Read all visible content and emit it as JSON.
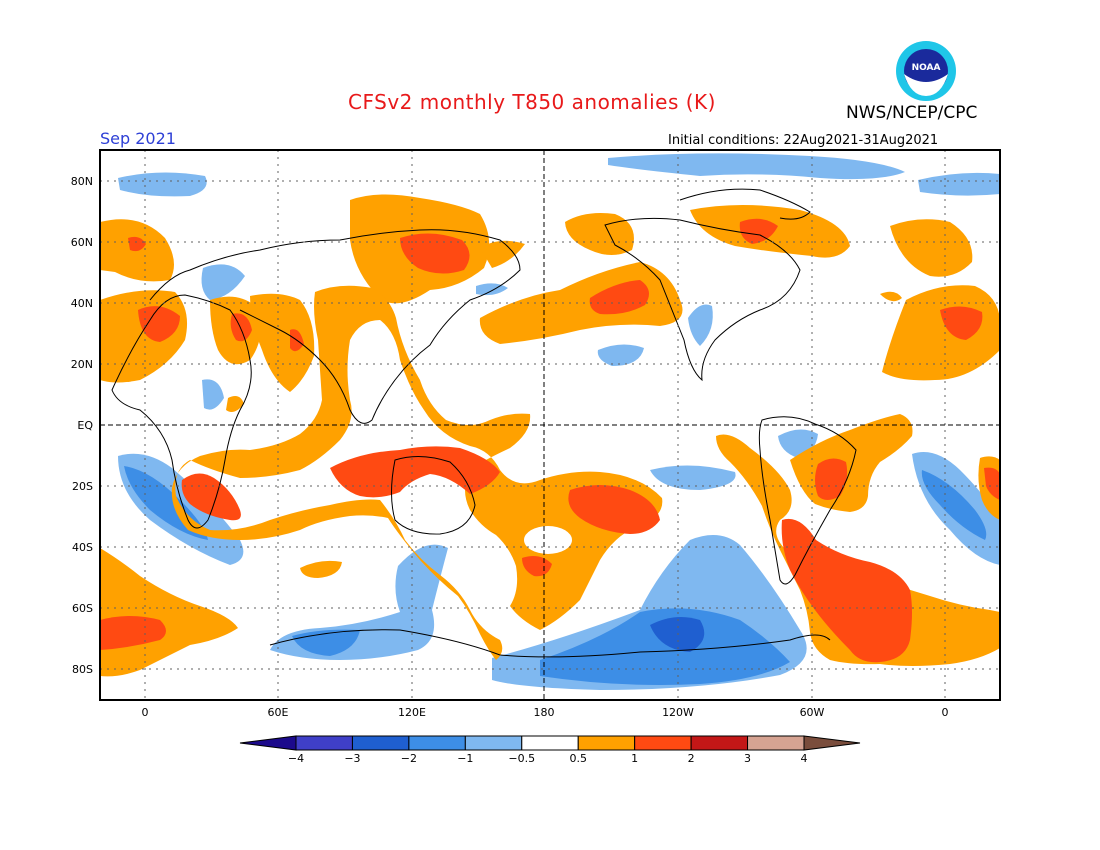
{
  "header": {
    "title": "CFSv2 monthly T850 anomalies (K)",
    "agency": "NWS/NCEP/CPC",
    "logo_text": "NOAA",
    "valid_month": "Sep 2021",
    "initial_conditions": "Initial conditions: 22Aug2021-31Aug2021"
  },
  "chart_data": {
    "type": "heatmap",
    "title": "CFSv2 monthly T850 anomalies (K)",
    "units": "K",
    "lat_ticks": [
      "80N",
      "60N",
      "40N",
      "20N",
      "EQ",
      "20S",
      "40S",
      "60S",
      "80S"
    ],
    "lon_ticks": [
      "0",
      "60E",
      "120E",
      "180",
      "120W",
      "60W",
      "0"
    ],
    "grid": true,
    "legend": {
      "placement": "bottom",
      "levels": [
        "-4",
        "-3",
        "-2",
        "-1",
        "-0.5",
        "0.5",
        "1",
        "2",
        "3",
        "4"
      ],
      "colors": [
        "#1c0a8c",
        "#3f3fc8",
        "#1f5fd0",
        "#3d8ee6",
        "#7fb8f0",
        "#ffffff",
        "#ffa100",
        "#ff4a12",
        "#c31717",
        "#d6a392",
        "#7a4d3c"
      ]
    },
    "palette": {
      "warm_light": "#ffa100",
      "warm_mid": "#ff4a12",
      "cool_light": "#7fb8f0",
      "cool_mid": "#3d8ee6",
      "cool_dark": "#1f5fd0"
    }
  }
}
